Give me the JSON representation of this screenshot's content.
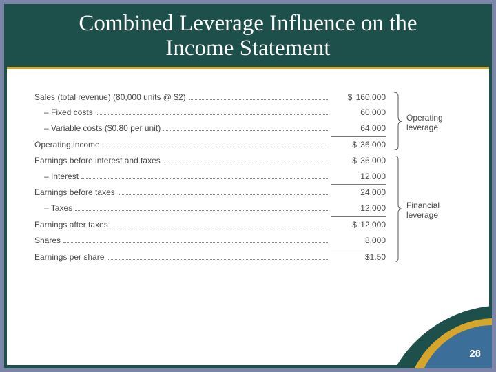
{
  "title_line1": "Combined Leverage Influence on the",
  "title_line2": "Income Statement",
  "rows": [
    {
      "label": "Sales (total revenue) (80,000 units @ $2)",
      "value": "160,000",
      "dollar": true,
      "indent": false,
      "sepAfter": false
    },
    {
      "label": "– Fixed costs",
      "value": "60,000",
      "dollar": false,
      "indent": true,
      "sepAfter": false
    },
    {
      "label": "– Variable costs ($0.80 per unit)",
      "value": "64,000",
      "dollar": false,
      "indent": true,
      "sepAfter": true
    },
    {
      "label": "Operating income",
      "value": "36,000",
      "dollar": true,
      "indent": false,
      "sepAfter": false
    },
    {
      "label": "Earnings before interest and taxes",
      "value": "36,000",
      "dollar": true,
      "indent": false,
      "sepAfter": false
    },
    {
      "label": "– Interest",
      "value": "12,000",
      "dollar": false,
      "indent": true,
      "sepAfter": true
    },
    {
      "label": "Earnings before taxes",
      "value": "24,000",
      "dollar": false,
      "indent": false,
      "sepAfter": false
    },
    {
      "label": "– Taxes",
      "value": "12,000",
      "dollar": false,
      "indent": true,
      "sepAfter": true
    },
    {
      "label": "Earnings after taxes",
      "value": "12,000",
      "dollar": true,
      "indent": false,
      "sepAfter": false
    },
    {
      "label": "Shares",
      "value": "8,000",
      "dollar": false,
      "indent": false,
      "sepAfter": true
    },
    {
      "label": "Earnings per share",
      "value": "$1.50",
      "dollar": false,
      "indent": false,
      "sepAfter": false
    }
  ],
  "brackets": [
    {
      "label1": "Operating",
      "label2": "leverage",
      "topRow": 0,
      "bottomRow": 3
    },
    {
      "label1": "Financial",
      "label2": "leverage",
      "topRow": 4,
      "bottomRow": 10
    }
  ],
  "rowHeight": 22.8,
  "colors": {
    "frame": "#1d4f4b",
    "accent": "#d6a52b",
    "bg": "#7b85a8",
    "corner1": "#1d4f4b",
    "corner2": "#3b6e99"
  },
  "pageNumber": "28"
}
